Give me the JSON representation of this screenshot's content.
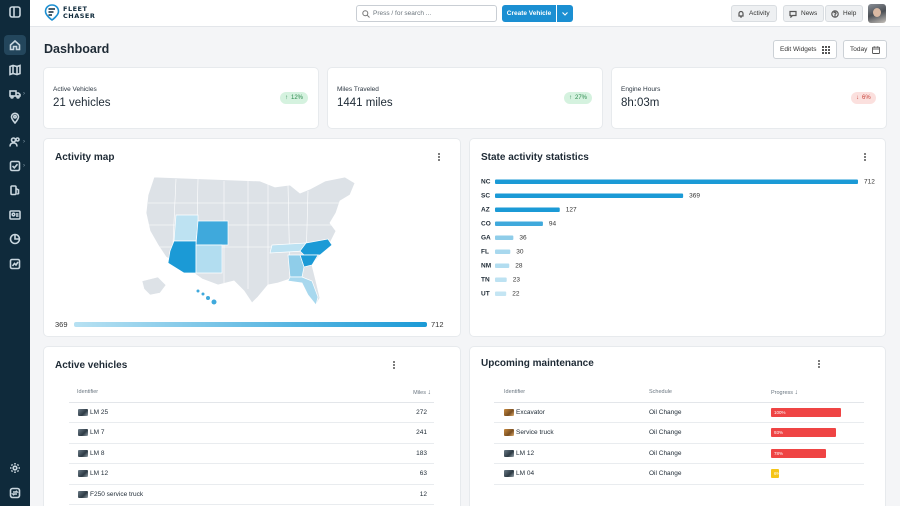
{
  "app": {
    "logo_line1": "FLEET",
    "logo_line2": "CHASER"
  },
  "topbar": {
    "search_placeholder": "Press / for search ...",
    "create_label": "Create Vehicle",
    "activity_label": "Activity",
    "news_label": "News",
    "help_label": "Help"
  },
  "page": {
    "title": "Dashboard",
    "edit_widgets_label": "Edit Widgets",
    "date_range_label": "Today"
  },
  "stats": [
    {
      "label": "Active Vehicles",
      "value": "21 vehicles",
      "change": "12%",
      "direction": "up"
    },
    {
      "label": "Miles Traveled",
      "value": "1441 miles",
      "change": "27%",
      "direction": "up"
    },
    {
      "label": "Engine Hours",
      "value": "8h:03m",
      "change": "6%",
      "direction": "down"
    }
  ],
  "activity_map": {
    "title": "Activity map",
    "legend_min": "369",
    "legend_max": "712"
  },
  "chart_data": {
    "type": "bar",
    "orientation": "horizontal",
    "title": "State activity statistics",
    "categories": [
      "NC",
      "SC",
      "AZ",
      "CO",
      "GA",
      "FL",
      "NM",
      "TN",
      "UT"
    ],
    "values": [
      712,
      369,
      127,
      94,
      36,
      30,
      28,
      23,
      22
    ],
    "colors": [
      "#1b9ad6",
      "#1b9ad6",
      "#1b9ad6",
      "#3fa9dc",
      "#8fcde9",
      "#a8d8ee",
      "#b2ddf0",
      "#bde2f2",
      "#c4e5f3"
    ]
  },
  "active_vehicles": {
    "title": "Active vehicles",
    "columns": [
      "Identifier",
      "Miles"
    ],
    "rows": [
      {
        "name": "LM 25",
        "miles": "272"
      },
      {
        "name": "LM 7",
        "miles": "241"
      },
      {
        "name": "LM 8",
        "miles": "183"
      },
      {
        "name": "LM 12",
        "miles": "63"
      },
      {
        "name": "F250 service truck",
        "miles": "12"
      }
    ]
  },
  "maintenance": {
    "title": "Upcoming maintenance",
    "columns": [
      "Identifier",
      "Schedule",
      "Progress"
    ],
    "rows": [
      {
        "name": "Excavator",
        "schedule": "Oil Change",
        "progress": 100,
        "progress_label": "100%",
        "color": "#ef4444",
        "icon": "orange"
      },
      {
        "name": "Service truck",
        "schedule": "Oil Change",
        "progress": 93,
        "progress_label": "93%",
        "color": "#ef4444",
        "icon": "orange"
      },
      {
        "name": "LM 12",
        "schedule": "Oil Change",
        "progress": 78,
        "progress_label": "78%",
        "color": "#ef4444",
        "icon": "gray"
      },
      {
        "name": "LM 04",
        "schedule": "Oil Change",
        "progress": 6,
        "progress_label": "6%",
        "color": "#f5c518",
        "icon": "gray"
      }
    ]
  }
}
